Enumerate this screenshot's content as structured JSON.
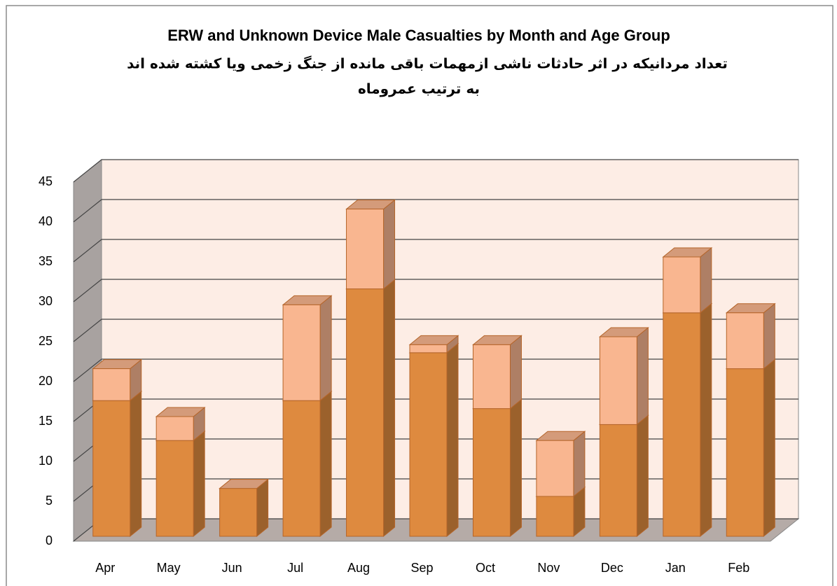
{
  "chart_data": {
    "type": "bar3d_stacked",
    "title": "ERW and Unknown Device Male Casualties by Month and Age Group",
    "subtitle": [
      "تعداد مردانیکه در اثر حادثات ناشی ازمهمات باقی مانده از جنگ زخمی ویا کشته شده اند",
      "به ترتیب عمروماه"
    ],
    "categories": [
      "Apr",
      "May",
      "Jun",
      "Jul",
      "Aug",
      "Sep",
      "Oct",
      "Nov",
      "Dec",
      "Jan",
      "Feb"
    ],
    "series": [
      {
        "color": "#de8a3f",
        "values": [
          17,
          12,
          6,
          17,
          31,
          23,
          16,
          5,
          14,
          28,
          21
        ]
      },
      {
        "color": "#f9b690",
        "values": [
          4,
          3,
          0,
          12,
          10,
          1,
          8,
          7,
          11,
          7,
          7
        ]
      }
    ],
    "ylim": [
      0,
      45
    ],
    "yticks": [
      0,
      5,
      10,
      15,
      20,
      25,
      30,
      35,
      40,
      45
    ],
    "grid": true
  }
}
